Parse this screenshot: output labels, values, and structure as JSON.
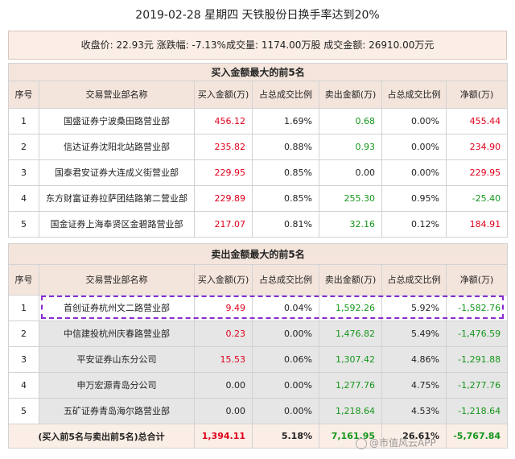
{
  "title": "2019-02-28  星期四  天铁股份日换手率达到20%",
  "summary": "收盘价: 22.93元  涨跌幅: -7.13%成交量: 1174.00万股  成交金额: 26910.00万元",
  "buy_section": {
    "heading": "买入金额最大的前5名",
    "headers": [
      "序号",
      "交易营业部名称",
      "买入金额(万)",
      "占总成交比例",
      "卖出金额(万)",
      "占总成交比例",
      "净额(万)"
    ],
    "rows": [
      {
        "no": "1",
        "name": "国盛证券宁波桑田路营业部",
        "buy": "456.12",
        "buy_pct": "1.69%",
        "sell": "0.68",
        "sell_pct": "0.00%",
        "net": "455.44"
      },
      {
        "no": "2",
        "name": "信达证券沈阳北站路营业部",
        "buy": "235.82",
        "buy_pct": "0.88%",
        "sell": "0.93",
        "sell_pct": "0.00%",
        "net": "234.90"
      },
      {
        "no": "3",
        "name": "国泰君安证券大连成义街营业部",
        "buy": "229.95",
        "buy_pct": "0.85%",
        "sell": "0.00",
        "sell_pct": "0.00%",
        "net": "229.95"
      },
      {
        "no": "4",
        "name": "东方财富证券拉萨团结路第二营业部",
        "buy": "229.89",
        "buy_pct": "0.85%",
        "sell": "255.30",
        "sell_pct": "0.95%",
        "net": "-25.40"
      },
      {
        "no": "5",
        "name": "国金证券上海奉贤区金碧路营业部",
        "buy": "217.07",
        "buy_pct": "0.81%",
        "sell": "32.16",
        "sell_pct": "0.12%",
        "net": "184.91"
      }
    ]
  },
  "sell_section": {
    "heading": "卖出金额最大的前5名",
    "headers": [
      "序号",
      "交易营业部名称",
      "买入金额(万)",
      "占总成交比例",
      "卖出金额(万)",
      "占总成交比例",
      "净额(万)"
    ],
    "rows": [
      {
        "no": "1",
        "name": "首创证券杭州文二路营业部",
        "buy": "9.49",
        "buy_pct": "0.04%",
        "sell": "1,592.26",
        "sell_pct": "5.92%",
        "net": "-1,582.76"
      },
      {
        "no": "2",
        "name": "中信建投杭州庆春路营业部",
        "buy": "0.23",
        "buy_pct": "0.00%",
        "sell": "1,476.82",
        "sell_pct": "5.49%",
        "net": "-1,476.59"
      },
      {
        "no": "3",
        "name": "平安证券山东分公司",
        "buy": "15.53",
        "buy_pct": "0.06%",
        "sell": "1,307.42",
        "sell_pct": "4.86%",
        "net": "-1,291.88"
      },
      {
        "no": "4",
        "name": "申万宏源青岛分公司",
        "buy": "0.00",
        "buy_pct": "0.00%",
        "sell": "1,277.76",
        "sell_pct": "4.75%",
        "net": "-1,277.76"
      },
      {
        "no": "5",
        "name": "五矿证券青岛海尔路营业部",
        "buy": "0.00",
        "buy_pct": "0.00%",
        "sell": "1,218.64",
        "sell_pct": "4.53%",
        "net": "-1,218.64"
      }
    ]
  },
  "total": {
    "label": "(买入前5名与卖出前5名)总合计",
    "buy": "1,394.11",
    "buy_pct": "5.18%",
    "sell": "7,161.95",
    "sell_pct": "26.61%",
    "net": "-5,767.84"
  },
  "watermark": "@市值风云APP",
  "colors": {
    "positive": "#e0001b",
    "negative": "#15961a",
    "header_bg": "#f4e5dc",
    "highlight_border": "#8a2bd0"
  }
}
